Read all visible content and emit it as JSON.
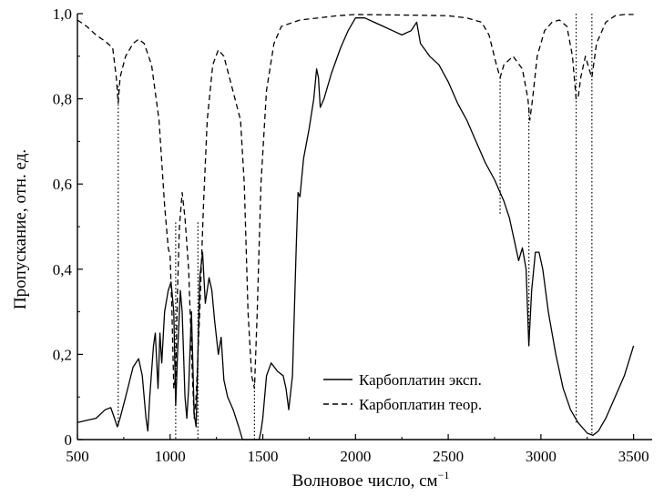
{
  "chart_data": {
    "type": "line",
    "xlabel": "Волновое число, см",
    "xlabel_sup": "−1",
    "ylabel": "Пропускание, отн. ед.",
    "xlim": [
      500,
      3600
    ],
    "ylim": [
      0,
      1.0
    ],
    "x_ticks": [
      500,
      1000,
      1500,
      2000,
      2500,
      3000,
      3500
    ],
    "x_tick_labels": [
      "500",
      "1000",
      "1500",
      "2000",
      "2500",
      "3000",
      "3500"
    ],
    "y_ticks": [
      0,
      0.2,
      0.4,
      0.6,
      0.8,
      1.0
    ],
    "y_tick_labels": [
      "0",
      "0,2",
      "0,4",
      "0,6",
      "0,8",
      "1,0"
    ],
    "grid": false,
    "legend_position": "bottom-center",
    "series": [
      {
        "name": "Карбоплатин эксп.",
        "style": "solid",
        "color": "#000000",
        "points": [
          [
            500,
            0.04
          ],
          [
            550,
            0.045
          ],
          [
            600,
            0.05
          ],
          [
            650,
            0.07
          ],
          [
            680,
            0.075
          ],
          [
            700,
            0.05
          ],
          [
            715,
            0.03
          ],
          [
            730,
            0.05
          ],
          [
            760,
            0.1
          ],
          [
            800,
            0.17
          ],
          [
            830,
            0.19
          ],
          [
            850,
            0.15
          ],
          [
            870,
            0.05
          ],
          [
            880,
            0.02
          ],
          [
            890,
            0.1
          ],
          [
            910,
            0.22
          ],
          [
            920,
            0.25
          ],
          [
            935,
            0.12
          ],
          [
            945,
            0.25
          ],
          [
            955,
            0.18
          ],
          [
            970,
            0.3
          ],
          [
            990,
            0.35
          ],
          [
            1005,
            0.37
          ],
          [
            1020,
            0.3
          ],
          [
            1030,
            0.08
          ],
          [
            1040,
            0.2
          ],
          [
            1055,
            0.35
          ],
          [
            1065,
            0.3
          ],
          [
            1080,
            0.1
          ],
          [
            1090,
            0.05
          ],
          [
            1100,
            0.12
          ],
          [
            1115,
            0.3
          ],
          [
            1130,
            0.06
          ],
          [
            1140,
            0.03
          ],
          [
            1150,
            0.2
          ],
          [
            1160,
            0.38
          ],
          [
            1175,
            0.44
          ],
          [
            1190,
            0.32
          ],
          [
            1210,
            0.38
          ],
          [
            1225,
            0.35
          ],
          [
            1240,
            0.28
          ],
          [
            1260,
            0.2
          ],
          [
            1275,
            0.24
          ],
          [
            1290,
            0.14
          ],
          [
            1310,
            0.1
          ],
          [
            1340,
            0.07
          ],
          [
            1370,
            0.03
          ],
          [
            1390,
            0.0
          ],
          [
            1480,
            0.0
          ],
          [
            1490,
            0.02
          ],
          [
            1500,
            0.05
          ],
          [
            1520,
            0.15
          ],
          [
            1545,
            0.18
          ],
          [
            1580,
            0.16
          ],
          [
            1610,
            0.15
          ],
          [
            1625,
            0.12
          ],
          [
            1640,
            0.07
          ],
          [
            1660,
            0.15
          ],
          [
            1680,
            0.45
          ],
          [
            1690,
            0.58
          ],
          [
            1700,
            0.57
          ],
          [
            1720,
            0.66
          ],
          [
            1750,
            0.73
          ],
          [
            1775,
            0.8
          ],
          [
            1790,
            0.87
          ],
          [
            1800,
            0.85
          ],
          [
            1810,
            0.78
          ],
          [
            1830,
            0.8
          ],
          [
            1870,
            0.86
          ],
          [
            1920,
            0.92
          ],
          [
            1960,
            0.96
          ],
          [
            2000,
            0.99
          ],
          [
            2050,
            0.99
          ],
          [
            2100,
            0.98
          ],
          [
            2150,
            0.97
          ],
          [
            2200,
            0.96
          ],
          [
            2250,
            0.95
          ],
          [
            2300,
            0.96
          ],
          [
            2330,
            0.98
          ],
          [
            2350,
            0.93
          ],
          [
            2400,
            0.9
          ],
          [
            2450,
            0.88
          ],
          [
            2500,
            0.84
          ],
          [
            2550,
            0.79
          ],
          [
            2600,
            0.75
          ],
          [
            2650,
            0.7
          ],
          [
            2700,
            0.65
          ],
          [
            2750,
            0.61
          ],
          [
            2780,
            0.58
          ],
          [
            2800,
            0.56
          ],
          [
            2830,
            0.52
          ],
          [
            2860,
            0.46
          ],
          [
            2880,
            0.42
          ],
          [
            2900,
            0.45
          ],
          [
            2920,
            0.4
          ],
          [
            2935,
            0.22
          ],
          [
            2950,
            0.35
          ],
          [
            2970,
            0.44
          ],
          [
            2990,
            0.44
          ],
          [
            3010,
            0.4
          ],
          [
            3040,
            0.3
          ],
          [
            3080,
            0.2
          ],
          [
            3120,
            0.12
          ],
          [
            3160,
            0.07
          ],
          [
            3200,
            0.04
          ],
          [
            3250,
            0.015
          ],
          [
            3280,
            0.01
          ],
          [
            3310,
            0.02
          ],
          [
            3350,
            0.05
          ],
          [
            3400,
            0.1
          ],
          [
            3450,
            0.15
          ],
          [
            3500,
            0.22
          ]
        ]
      },
      {
        "name": "Карбоплатин теор.",
        "style": "dashed",
        "color": "#000000",
        "points": [
          [
            500,
            0.985
          ],
          [
            550,
            0.97
          ],
          [
            600,
            0.95
          ],
          [
            650,
            0.935
          ],
          [
            690,
            0.92
          ],
          [
            710,
            0.85
          ],
          [
            720,
            0.79
          ],
          [
            730,
            0.85
          ],
          [
            760,
            0.9
          ],
          [
            800,
            0.93
          ],
          [
            830,
            0.94
          ],
          [
            860,
            0.93
          ],
          [
            900,
            0.88
          ],
          [
            940,
            0.75
          ],
          [
            970,
            0.55
          ],
          [
            990,
            0.45
          ],
          [
            1000,
            0.43
          ],
          [
            1010,
            0.3
          ],
          [
            1020,
            0.12
          ],
          [
            1030,
            0.15
          ],
          [
            1040,
            0.35
          ],
          [
            1050,
            0.5
          ],
          [
            1065,
            0.58
          ],
          [
            1080,
            0.52
          ],
          [
            1100,
            0.4
          ],
          [
            1120,
            0.15
          ],
          [
            1130,
            0.05
          ],
          [
            1140,
            0.1
          ],
          [
            1160,
            0.3
          ],
          [
            1180,
            0.55
          ],
          [
            1200,
            0.75
          ],
          [
            1230,
            0.88
          ],
          [
            1260,
            0.915
          ],
          [
            1290,
            0.9
          ],
          [
            1320,
            0.85
          ],
          [
            1350,
            0.8
          ],
          [
            1380,
            0.75
          ],
          [
            1400,
            0.6
          ],
          [
            1420,
            0.3
          ],
          [
            1440,
            0.15
          ],
          [
            1455,
            0.12
          ],
          [
            1470,
            0.3
          ],
          [
            1490,
            0.6
          ],
          [
            1520,
            0.82
          ],
          [
            1560,
            0.93
          ],
          [
            1600,
            0.97
          ],
          [
            1700,
            0.985
          ],
          [
            1800,
            0.99
          ],
          [
            1900,
            0.995
          ],
          [
            2000,
            0.998
          ],
          [
            2200,
            0.997
          ],
          [
            2400,
            0.996
          ],
          [
            2500,
            0.995
          ],
          [
            2600,
            0.99
          ],
          [
            2680,
            0.98
          ],
          [
            2720,
            0.95
          ],
          [
            2760,
            0.88
          ],
          [
            2780,
            0.85
          ],
          [
            2800,
            0.88
          ],
          [
            2850,
            0.9
          ],
          [
            2900,
            0.87
          ],
          [
            2930,
            0.8
          ],
          [
            2940,
            0.75
          ],
          [
            2955,
            0.8
          ],
          [
            2980,
            0.9
          ],
          [
            3020,
            0.96
          ],
          [
            3060,
            0.98
          ],
          [
            3100,
            0.985
          ],
          [
            3140,
            0.97
          ],
          [
            3170,
            0.9
          ],
          [
            3190,
            0.8
          ],
          [
            3200,
            0.8
          ],
          [
            3215,
            0.85
          ],
          [
            3240,
            0.9
          ],
          [
            3260,
            0.87
          ],
          [
            3275,
            0.85
          ],
          [
            3300,
            0.93
          ],
          [
            3350,
            0.98
          ],
          [
            3400,
            0.995
          ],
          [
            3450,
            0.998
          ],
          [
            3500,
            0.998
          ]
        ]
      }
    ],
    "vertical_markers": [
      {
        "x": 720,
        "y_top": 0.83,
        "y_bottom": 0.03
      },
      {
        "x": 1030,
        "y_top": 0.51,
        "y_bottom": 0.0
      },
      {
        "x": 1150,
        "y_top": 0.51,
        "y_bottom": 0.0
      },
      {
        "x": 1455,
        "y_top": 0.14,
        "y_bottom": 0.0
      },
      {
        "x": 2780,
        "y_top": 0.85,
        "y_bottom": 0.53
      },
      {
        "x": 2935,
        "y_top": 0.78,
        "y_bottom": 0.22
      },
      {
        "x": 3190,
        "y_top": 1.0,
        "y_bottom": 0.04
      },
      {
        "x": 3275,
        "y_top": 1.0,
        "y_bottom": 0.01
      }
    ]
  }
}
